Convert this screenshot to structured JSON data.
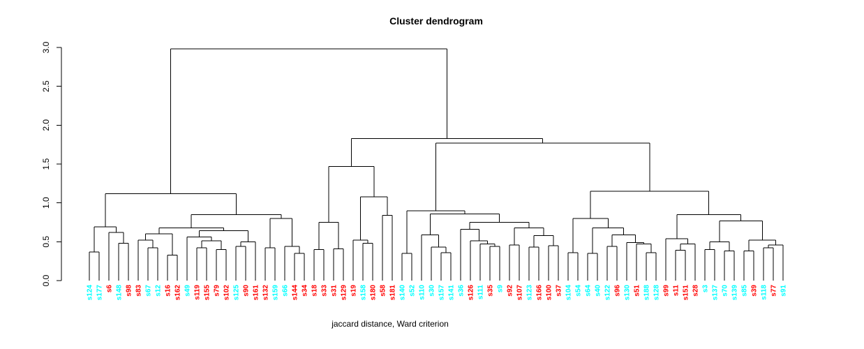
{
  "chart_data": {
    "type": "dendrogram",
    "title": "Cluster dendrogram",
    "xlabel": "jaccard distance, Ward criterion",
    "ylabel": "",
    "ylim": [
      0,
      3
    ],
    "yticks": [
      "0.0",
      "0.5",
      "1.0",
      "1.5",
      "2.0",
      "2.5",
      "3.0"
    ],
    "grid": false,
    "legend": "none",
    "leaf_palette": {
      "cyan": "#00FFFF",
      "red": "#FF0000"
    },
    "line_color": "#000000",
    "leaves": [
      {
        "label": "s124",
        "color": "cyan"
      },
      {
        "label": "s177",
        "color": "cyan"
      },
      {
        "label": "s6",
        "color": "red"
      },
      {
        "label": "s148",
        "color": "cyan"
      },
      {
        "label": "s98",
        "color": "red"
      },
      {
        "label": "s83",
        "color": "red"
      },
      {
        "label": "s67",
        "color": "cyan"
      },
      {
        "label": "s12",
        "color": "cyan"
      },
      {
        "label": "s16",
        "color": "red"
      },
      {
        "label": "s162",
        "color": "red"
      },
      {
        "label": "s49",
        "color": "cyan"
      },
      {
        "label": "s119",
        "color": "red"
      },
      {
        "label": "s155",
        "color": "red"
      },
      {
        "label": "s79",
        "color": "red"
      },
      {
        "label": "s102",
        "color": "red"
      },
      {
        "label": "s125",
        "color": "cyan"
      },
      {
        "label": "s90",
        "color": "red"
      },
      {
        "label": "s161",
        "color": "red"
      },
      {
        "label": "s132",
        "color": "red"
      },
      {
        "label": "s159",
        "color": "cyan"
      },
      {
        "label": "s66",
        "color": "cyan"
      },
      {
        "label": "s144",
        "color": "red"
      },
      {
        "label": "s34",
        "color": "red"
      },
      {
        "label": "s18",
        "color": "red"
      },
      {
        "label": "s33",
        "color": "red"
      },
      {
        "label": "s31",
        "color": "red"
      },
      {
        "label": "s129",
        "color": "red"
      },
      {
        "label": "s19",
        "color": "red"
      },
      {
        "label": "s158",
        "color": "cyan"
      },
      {
        "label": "s180",
        "color": "red"
      },
      {
        "label": "s58",
        "color": "red"
      },
      {
        "label": "s181",
        "color": "red"
      },
      {
        "label": "s140",
        "color": "cyan"
      },
      {
        "label": "s52",
        "color": "cyan"
      },
      {
        "label": "s110",
        "color": "cyan"
      },
      {
        "label": "s30",
        "color": "cyan"
      },
      {
        "label": "s157",
        "color": "cyan"
      },
      {
        "label": "s141",
        "color": "cyan"
      },
      {
        "label": "s36",
        "color": "cyan"
      },
      {
        "label": "s126",
        "color": "red"
      },
      {
        "label": "s111",
        "color": "cyan"
      },
      {
        "label": "s35",
        "color": "red"
      },
      {
        "label": "s9",
        "color": "cyan"
      },
      {
        "label": "s92",
        "color": "red"
      },
      {
        "label": "s107",
        "color": "red"
      },
      {
        "label": "s123",
        "color": "cyan"
      },
      {
        "label": "s166",
        "color": "red"
      },
      {
        "label": "s100",
        "color": "red"
      },
      {
        "label": "s37",
        "color": "red"
      },
      {
        "label": "s104",
        "color": "cyan"
      },
      {
        "label": "s54",
        "color": "cyan"
      },
      {
        "label": "s64",
        "color": "cyan"
      },
      {
        "label": "s40",
        "color": "cyan"
      },
      {
        "label": "s122",
        "color": "cyan"
      },
      {
        "label": "s96",
        "color": "red"
      },
      {
        "label": "s130",
        "color": "cyan"
      },
      {
        "label": "s51",
        "color": "red"
      },
      {
        "label": "s188",
        "color": "cyan"
      },
      {
        "label": "s128",
        "color": "cyan"
      },
      {
        "label": "s99",
        "color": "red"
      },
      {
        "label": "s11",
        "color": "red"
      },
      {
        "label": "s151",
        "color": "red"
      },
      {
        "label": "s28",
        "color": "red"
      },
      {
        "label": "s3",
        "color": "cyan"
      },
      {
        "label": "s137",
        "color": "cyan"
      },
      {
        "label": "s70",
        "color": "cyan"
      },
      {
        "label": "s139",
        "color": "cyan"
      },
      {
        "label": "s85",
        "color": "cyan"
      },
      {
        "label": "s39",
        "color": "red"
      },
      {
        "label": "s118",
        "color": "cyan"
      },
      {
        "label": "s77",
        "color": "red"
      },
      {
        "label": "s91",
        "color": "cyan"
      }
    ],
    "tree": [
      2.98,
      [
        1.12,
        [
          0.69,
          [
            0.37,
            "s124",
            "s177"
          ],
          [
            0.62,
            "s6",
            [
              0.48,
              "s148",
              "s98"
            ]
          ]
        ],
        [
          0.85,
          [
            0.68,
            [
              0.6,
              [
                0.52,
                "s83",
                [
                  0.42,
                  "s67",
                  "s12"
                ]
              ],
              [
                0.33,
                "s16",
                "s162"
              ]
            ],
            [
              0.64,
              [
                0.56,
                "s49",
                [
                  0.51,
                  [
                    0.42,
                    "s119",
                    "s155"
                  ],
                  [
                    0.4,
                    "s79",
                    "s102"
                  ]
                ]
              ],
              [
                0.5,
                [
                  0.44,
                  "s125",
                  "s90"
                ],
                "s161"
              ]
            ]
          ],
          [
            0.8,
            [
              0.42,
              "s132",
              "s159"
            ],
            [
              0.44,
              "s66",
              [
                0.35,
                "s144",
                "s34"
              ]
            ]
          ]
        ]
      ],
      [
        1.83,
        [
          1.47,
          [
            0.75,
            [
              0.4,
              "s18",
              "s33"
            ],
            [
              0.41,
              "s31",
              "s129"
            ]
          ],
          [
            1.08,
            [
              0.52,
              "s19",
              [
                0.48,
                "s158",
                "s180"
              ]
            ],
            [
              0.84,
              "s58",
              "s181"
            ]
          ]
        ],
        [
          1.77,
          [
            0.9,
            [
              0.35,
              "s140",
              "s52"
            ],
            [
              0.86,
              [
                0.59,
                "s110",
                [
                  0.43,
                  "s30",
                  [
                    0.36,
                    "s157",
                    "s141"
                  ]
                ]
              ],
              [
                0.75,
                [
                  0.66,
                  "s36",
                  [
                    0.51,
                    "s126",
                    [
                      0.47,
                      "s111",
                      [
                        0.44,
                        "s35",
                        "s9"
                      ]
                    ]
                  ]
                ],
                [
                  0.68,
                  [
                    0.46,
                    "s92",
                    "s107"
                  ],
                  [
                    0.58,
                    [
                      0.43,
                      "s123",
                      "s166"
                    ],
                    [
                      0.45,
                      "s100",
                      "s37"
                    ]
                  ]
                ]
              ]
            ]
          ],
          [
            1.15,
            [
              0.8,
              [
                0.36,
                "s104",
                "s54"
              ],
              [
                0.68,
                [
                  0.35,
                  "s64",
                  "s40"
                ],
                [
                  0.59,
                  [
                    0.44,
                    "s122",
                    "s96"
                  ],
                  [
                    0.49,
                    "s130",
                    [
                      0.47,
                      "s51",
                      [
                        0.36,
                        "s188",
                        "s128"
                      ]
                    ]
                  ]
                ]
              ]
            ],
            [
              0.85,
              [
                0.54,
                "s99",
                [
                  0.47,
                  [
                    0.39,
                    "s11",
                    "s151"
                  ],
                  "s28"
                ]
              ],
              [
                0.77,
                [
                  0.5,
                  [
                    0.4,
                    "s3",
                    "s137"
                  ],
                  [
                    0.38,
                    "s70",
                    "s139"
                  ]
                ],
                [
                  0.52,
                  [
                    0.38,
                    "s85",
                    "s39"
                  ],
                  [
                    0.46,
                    [
                      0.42,
                      "s118",
                      "s77"
                    ],
                    "s91"
                  ]
                ]
              ]
            ]
          ]
        ]
      ]
    ]
  }
}
